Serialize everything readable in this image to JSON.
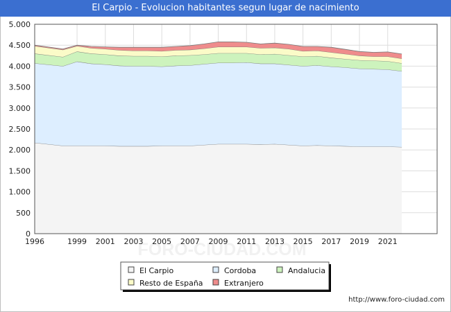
{
  "chart_data": {
    "type": "area",
    "title": "El Carpio - Evolucion habitantes segun lugar de nacimiento",
    "xlabel": "",
    "ylabel": "",
    "ylim": [
      0,
      5000
    ],
    "y_ticks": [
      0,
      500,
      1000,
      1500,
      2000,
      2500,
      3000,
      3500,
      4000,
      4500,
      5000
    ],
    "y_tick_labels": [
      "0",
      "500",
      "1.000",
      "1.500",
      "2.000",
      "2.500",
      "3.000",
      "3.500",
      "4.000",
      "4.500",
      "5.000"
    ],
    "x_tick_labels": [
      "1996",
      "1999",
      "2001",
      "2003",
      "2005",
      "2007",
      "2009",
      "2011",
      "2013",
      "2015",
      "2017",
      "2019",
      "2021"
    ],
    "stacked": true,
    "grid": true,
    "legend_position": "bottom-center",
    "x": [
      1996,
      1998,
      1999,
      2000,
      2001,
      2002,
      2003,
      2004,
      2005,
      2006,
      2007,
      2008,
      2009,
      2010,
      2011,
      2012,
      2013,
      2014,
      2015,
      2016,
      2017,
      2018,
      2019,
      2020,
      2021,
      2022
    ],
    "series": [
      {
        "name": "El Carpio",
        "color": "#f4f4f4",
        "values": [
          2170,
          2100,
          2100,
          2100,
          2100,
          2090,
          2090,
          2090,
          2100,
          2100,
          2100,
          2120,
          2140,
          2140,
          2140,
          2130,
          2140,
          2120,
          2100,
          2110,
          2100,
          2090,
          2080,
          2080,
          2080,
          2070
        ]
      },
      {
        "name": "Cordoba",
        "color": "#ddeeff",
        "values": [
          1900,
          1900,
          2010,
          1960,
          1940,
          1920,
          1910,
          1910,
          1890,
          1910,
          1920,
          1930,
          1940,
          1940,
          1950,
          1930,
          1920,
          1910,
          1900,
          1910,
          1890,
          1880,
          1860,
          1850,
          1840,
          1810
        ]
      },
      {
        "name": "Andalucia",
        "color": "#cdf3bd",
        "values": [
          230,
          220,
          240,
          240,
          240,
          240,
          240,
          240,
          240,
          240,
          240,
          230,
          230,
          230,
          220,
          220,
          230,
          230,
          230,
          220,
          210,
          200,
          200,
          200,
          200,
          190
        ]
      },
      {
        "name": "Resto de España",
        "color": "#fbfbc8",
        "values": [
          180,
          170,
          130,
          130,
          130,
          130,
          130,
          130,
          130,
          130,
          130,
          140,
          150,
          150,
          150,
          150,
          150,
          150,
          130,
          130,
          130,
          120,
          110,
          100,
          110,
          110
        ]
      },
      {
        "name": "Extranjero",
        "color": "#ef8c8c",
        "values": [
          20,
          20,
          20,
          40,
          50,
          70,
          80,
          80,
          90,
          90,
          100,
          110,
          120,
          120,
          110,
          100,
          110,
          110,
          110,
          100,
          120,
          110,
          100,
          100,
          110,
          110
        ]
      }
    ]
  },
  "footer": {
    "source_text": "http://www.foro-ciudad.com",
    "watermark": "FORO-CIUDAD.COM"
  }
}
